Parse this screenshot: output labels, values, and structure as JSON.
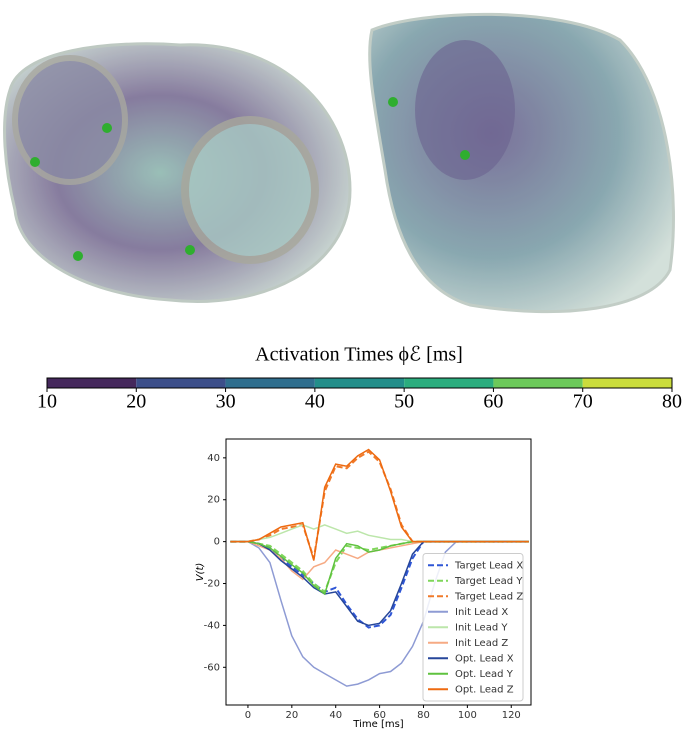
{
  "colorbar": {
    "label": "Activation Times ϕℰ [ms]",
    "ticks": [
      10,
      20,
      30,
      40,
      50,
      60,
      70,
      80
    ],
    "colors": [
      "#45285c",
      "#3c4f8a",
      "#2f6e8e",
      "#238e8a",
      "#2bad7e",
      "#6cc95a",
      "#cadc3c"
    ]
  },
  "chart_data": {
    "type": "line",
    "xlabel": "Time [ms]",
    "ylabel": "V(t)",
    "x": [
      -8,
      0,
      5,
      10,
      15,
      20,
      25,
      30,
      35,
      40,
      45,
      50,
      55,
      60,
      65,
      70,
      75,
      80,
      85,
      90,
      95,
      100,
      110,
      120,
      128
    ],
    "xlim": [
      -10,
      129
    ],
    "ylim": [
      -78,
      49
    ],
    "xticks": [
      0,
      20,
      40,
      60,
      80,
      100,
      120
    ],
    "yticks": [
      -60,
      -40,
      -20,
      0,
      20,
      40
    ],
    "legend": "lower right",
    "series": [
      {
        "name": "Target Lead X",
        "color": "#2f56d6",
        "style": "dashed",
        "values": [
          0,
          0,
          -1,
          -3,
          -8,
          -12,
          -16,
          -20,
          -24,
          -22,
          -30,
          -37,
          -41,
          -40,
          -35,
          -22,
          -8,
          0,
          0,
          0,
          0,
          0,
          0,
          0,
          0
        ]
      },
      {
        "name": "Target Lead Y",
        "color": "#7fd65a",
        "style": "dashed",
        "values": [
          0,
          0,
          -1,
          -2,
          -6,
          -10,
          -14,
          -20,
          -24,
          -10,
          -2,
          -3,
          -4,
          -3,
          -2,
          -1,
          0,
          0,
          0,
          0,
          0,
          0,
          0,
          0,
          0
        ]
      },
      {
        "name": "Target Lead Z",
        "color": "#f07a2a",
        "style": "dashed",
        "values": [
          0,
          0,
          1,
          3,
          6,
          7,
          8,
          -8,
          24,
          36,
          35,
          40,
          43,
          38,
          25,
          8,
          0,
          0,
          0,
          0,
          0,
          0,
          0,
          0,
          0
        ]
      },
      {
        "name": "Init Lead X",
        "color": "#8e9bd4",
        "style": "solid",
        "values": [
          0,
          0,
          -3,
          -10,
          -28,
          -45,
          -55,
          -60,
          -63,
          -66,
          -69,
          -68,
          -66,
          -63,
          -62,
          -58,
          -50,
          -38,
          -20,
          -5,
          0,
          0,
          0,
          0,
          0
        ]
      },
      {
        "name": "Init Lead Y",
        "color": "#bce6aa",
        "style": "solid",
        "values": [
          0,
          0,
          1,
          2,
          4,
          6,
          8,
          6,
          8,
          6,
          4,
          5,
          3,
          2,
          1,
          1,
          0,
          0,
          0,
          0,
          0,
          0,
          0,
          0,
          0
        ]
      },
      {
        "name": "Init Lead Z",
        "color": "#f6aa84",
        "style": "solid",
        "values": [
          0,
          0,
          -2,
          -4,
          -8,
          -14,
          -18,
          -12,
          -10,
          -4,
          -6,
          -8,
          -5,
          -4,
          -3,
          -2,
          -1,
          0,
          0,
          0,
          0,
          0,
          0,
          0,
          0
        ]
      },
      {
        "name": "Opt. Lead X",
        "color": "#26469a",
        "style": "solid",
        "values": [
          0,
          0,
          -1,
          -4,
          -9,
          -13,
          -17,
          -22,
          -25,
          -24,
          -31,
          -38,
          -40,
          -39,
          -33,
          -20,
          -6,
          0,
          0,
          0,
          0,
          0,
          0,
          0,
          0
        ]
      },
      {
        "name": "Opt. Lead Y",
        "color": "#5fc23f",
        "style": "solid",
        "values": [
          0,
          0,
          -1,
          -3,
          -7,
          -11,
          -15,
          -21,
          -25,
          -8,
          -1,
          -2,
          -5,
          -4,
          -2,
          -1,
          0,
          0,
          0,
          0,
          0,
          0,
          0,
          0,
          0
        ]
      },
      {
        "name": "Opt. Lead Z",
        "color": "#ee6a10",
        "style": "solid",
        "values": [
          0,
          0,
          1,
          4,
          7,
          8,
          9,
          -9,
          26,
          37,
          36,
          41,
          44,
          39,
          24,
          7,
          0,
          0,
          0,
          0,
          0,
          0,
          0,
          0,
          0
        ]
      }
    ]
  }
}
